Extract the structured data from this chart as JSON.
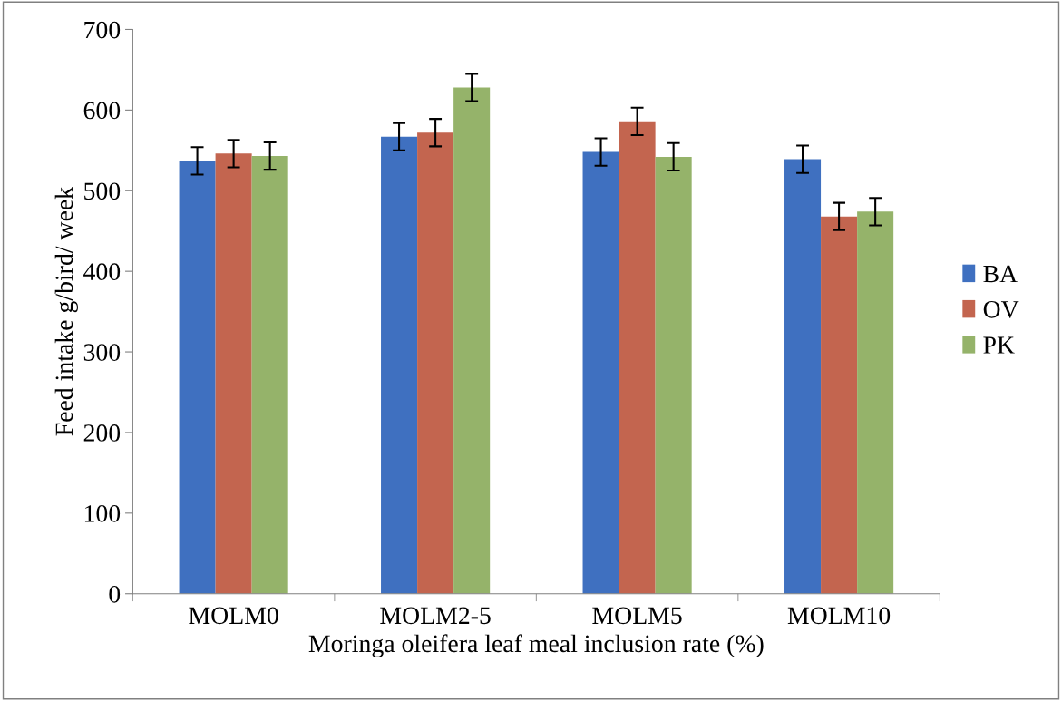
{
  "chart_data": {
    "type": "bar",
    "xlabel": "Moringa oleifera leaf meal inclusion rate (%)",
    "ylabel": "Feed intake g/bird/ week",
    "categories": [
      "MOLM0",
      "MOLM2-5",
      "MOLM5",
      "MOLM10"
    ],
    "series": [
      {
        "name": "BA",
        "color": "#3f70c0",
        "values": [
          537,
          567,
          548,
          539
        ],
        "errors": [
          17,
          17,
          17,
          17
        ]
      },
      {
        "name": "OV",
        "color": "#c3654f",
        "values": [
          546,
          572,
          586,
          468
        ],
        "errors": [
          17,
          17,
          17,
          17
        ]
      },
      {
        "name": "PK",
        "color": "#95b36a",
        "values": [
          543,
          628,
          542,
          474
        ],
        "errors": [
          17,
          17,
          17,
          17
        ]
      }
    ],
    "ylim": [
      0,
      700
    ],
    "yticks": [
      0,
      100,
      200,
      300,
      400,
      500,
      600,
      700
    ],
    "grid": false,
    "legend": "right"
  }
}
